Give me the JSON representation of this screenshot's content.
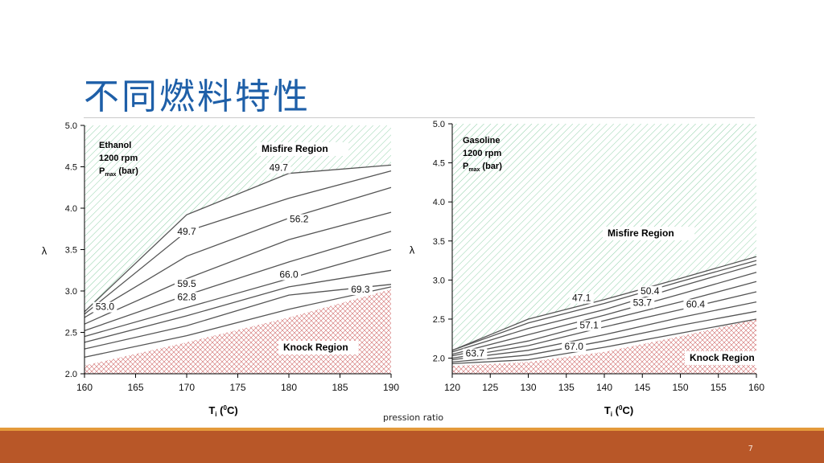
{
  "slide": {
    "title": "不同燃料特性",
    "page_number": "7",
    "caption_fragment": "pression ratio"
  },
  "colors": {
    "title": "#1e5fa8",
    "misfire_hatch": "#8fd0a8",
    "knock_hatch": "#d06a6a",
    "contour_line": "#555555",
    "footer_bar": "#b85728",
    "footer_stripe": "#e49a3b"
  },
  "chart_data": [
    {
      "type": "line",
      "legend_lines": [
        "Ethanol",
        "1200 rpm",
        "P",
        "max",
        "(bar)"
      ],
      "xlabel_main": "T",
      "xlabel_sub": "i",
      "xlabel_paren_open": " (",
      "xlabel_sup": "0",
      "xlabel_unit": "C)",
      "ylabel": "λ",
      "xlim": [
        160,
        190
      ],
      "ylim": [
        2.0,
        5.0
      ],
      "xticks": [
        160,
        165,
        170,
        175,
        180,
        185,
        190
      ],
      "yticks": [
        2.0,
        2.5,
        3.0,
        3.5,
        4.0,
        4.5,
        5.0
      ],
      "ytick_labels": [
        "2.0",
        "2.5",
        "3.0",
        "3.5",
        "4.0",
        "4.5",
        "5.0"
      ],
      "regions": [
        {
          "name": "Misfire Region",
          "kind": "misfire",
          "boundary": [
            [
              160,
              2.75
            ],
            [
              170,
              3.92
            ],
            [
              180,
              4.42
            ],
            [
              190,
              4.52
            ]
          ],
          "side": "above"
        },
        {
          "name": "Knock Region",
          "kind": "knock",
          "boundary": [
            [
              160,
              2.1
            ],
            [
              170,
              2.38
            ],
            [
              180,
              2.68
            ],
            [
              190,
              3.02
            ]
          ],
          "side": "below"
        }
      ],
      "series": [
        {
          "values": [
            [
              160,
              2.75
            ],
            [
              170,
              3.92
            ],
            [
              180,
              4.42
            ],
            [
              190,
              4.52
            ]
          ]
        },
        {
          "values": [
            [
              160,
              2.72
            ],
            [
              170,
              3.72
            ],
            [
              180,
              4.12
            ],
            [
              190,
              4.45
            ]
          ]
        },
        {
          "values": [
            [
              160,
              2.68
            ],
            [
              170,
              3.42
            ],
            [
              180,
              3.88
            ],
            [
              190,
              4.25
            ]
          ]
        },
        {
          "values": [
            [
              160,
              2.6
            ],
            [
              170,
              3.15
            ],
            [
              180,
              3.62
            ],
            [
              190,
              3.95
            ]
          ]
        },
        {
          "values": [
            [
              160,
              2.52
            ],
            [
              170,
              2.95
            ],
            [
              180,
              3.35
            ],
            [
              190,
              3.72
            ]
          ]
        },
        {
          "values": [
            [
              160,
              2.45
            ],
            [
              170,
              2.8
            ],
            [
              180,
              3.15
            ],
            [
              190,
              3.5
            ]
          ]
        },
        {
          "values": [
            [
              160,
              2.38
            ],
            [
              170,
              2.7
            ],
            [
              180,
              3.05
            ],
            [
              190,
              3.25
            ]
          ]
        },
        {
          "values": [
            [
              160,
              2.3
            ],
            [
              170,
              2.58
            ],
            [
              180,
              2.95
            ],
            [
              190,
              3.08
            ]
          ]
        },
        {
          "values": [
            [
              160,
              2.2
            ],
            [
              170,
              2.46
            ],
            [
              180,
              2.78
            ],
            [
              190,
              3.05
            ]
          ]
        }
      ],
      "annotations": [
        {
          "text": "49.7",
          "x": 179,
          "y": 4.45
        },
        {
          "text": "49.7",
          "x": 170,
          "y": 3.68
        },
        {
          "text": "56.2",
          "x": 181,
          "y": 3.83
        },
        {
          "text": "53.0",
          "x": 162,
          "y": 2.77
        },
        {
          "text": "59.5",
          "x": 170,
          "y": 3.05
        },
        {
          "text": "62.8",
          "x": 170,
          "y": 2.89
        },
        {
          "text": "66.0",
          "x": 180,
          "y": 3.16
        },
        {
          "text": "69.3",
          "x": 187,
          "y": 2.98
        }
      ]
    },
    {
      "type": "line",
      "legend_lines": [
        "Gasoline",
        "1200 rpm",
        "P",
        "max",
        "(bar)"
      ],
      "xlabel_main": "T",
      "xlabel_sub": "i",
      "xlabel_paren_open": " (",
      "xlabel_sup": "0",
      "xlabel_unit": "C)",
      "ylabel": "λ",
      "xlim": [
        120,
        160
      ],
      "ylim": [
        1.8,
        5.0
      ],
      "xticks": [
        120,
        125,
        130,
        135,
        140,
        145,
        150,
        155,
        160
      ],
      "yticks": [
        2.0,
        2.5,
        3.0,
        3.5,
        4.0,
        4.5,
        5.0
      ],
      "ytick_labels": [
        "2.0",
        "2.5",
        "3.0",
        "3.5",
        "4.0",
        "4.5",
        "5.0"
      ],
      "regions": [
        {
          "name": "Misfire Region",
          "kind": "misfire",
          "boundary": [
            [
              120,
              2.1
            ],
            [
              130,
              2.5
            ],
            [
              140,
              2.75
            ],
            [
              150,
              3.02
            ],
            [
              160,
              3.3
            ]
          ],
          "side": "above"
        },
        {
          "name": "Knock Region",
          "kind": "knock",
          "boundary": [
            [
              120,
              1.9
            ],
            [
              130,
              1.95
            ],
            [
              140,
              2.08
            ],
            [
              150,
              2.28
            ],
            [
              160,
              2.5
            ]
          ],
          "side": "below"
        }
      ],
      "series": [
        {
          "values": [
            [
              120,
              2.1
            ],
            [
              130,
              2.5
            ],
            [
              140,
              2.75
            ],
            [
              150,
              3.02
            ],
            [
              160,
              3.3
            ]
          ]
        },
        {
          "values": [
            [
              120,
              2.1
            ],
            [
              130,
              2.45
            ],
            [
              140,
              2.7
            ],
            [
              150,
              2.98
            ],
            [
              160,
              3.25
            ]
          ]
        },
        {
          "values": [
            [
              120,
              2.08
            ],
            [
              130,
              2.38
            ],
            [
              140,
              2.62
            ],
            [
              150,
              2.92
            ],
            [
              160,
              3.2
            ]
          ]
        },
        {
          "values": [
            [
              120,
              2.05
            ],
            [
              130,
              2.3
            ],
            [
              140,
              2.55
            ],
            [
              150,
              2.82
            ],
            [
              160,
              3.1
            ]
          ]
        },
        {
          "values": [
            [
              120,
              2.03
            ],
            [
              130,
              2.22
            ],
            [
              140,
              2.48
            ],
            [
              150,
              2.72
            ],
            [
              160,
              2.98
            ]
          ]
        },
        {
          "values": [
            [
              120,
              2.0
            ],
            [
              130,
              2.16
            ],
            [
              140,
              2.4
            ],
            [
              150,
              2.62
            ],
            [
              160,
              2.85
            ]
          ]
        },
        {
          "values": [
            [
              120,
              1.98
            ],
            [
              130,
              2.1
            ],
            [
              140,
              2.3
            ],
            [
              150,
              2.52
            ],
            [
              160,
              2.72
            ]
          ]
        },
        {
          "values": [
            [
              120,
              1.95
            ],
            [
              130,
              2.04
            ],
            [
              140,
              2.22
            ],
            [
              150,
              2.42
            ],
            [
              160,
              2.6
            ]
          ]
        },
        {
          "values": [
            [
              120,
              1.93
            ],
            [
              130,
              1.98
            ],
            [
              140,
              2.14
            ],
            [
              150,
              2.32
            ],
            [
              160,
              2.5
            ]
          ]
        }
      ],
      "annotations": [
        {
          "text": "47.1",
          "x": 137,
          "y": 2.73
        },
        {
          "text": "50.4",
          "x": 146,
          "y": 2.82
        },
        {
          "text": "53.7",
          "x": 145,
          "y": 2.67
        },
        {
          "text": "60.4",
          "x": 152,
          "y": 2.65
        },
        {
          "text": "57.1",
          "x": 138,
          "y": 2.38
        },
        {
          "text": "67.0",
          "x": 136,
          "y": 2.11
        },
        {
          "text": "63.7",
          "x": 123,
          "y": 2.02
        }
      ]
    }
  ]
}
